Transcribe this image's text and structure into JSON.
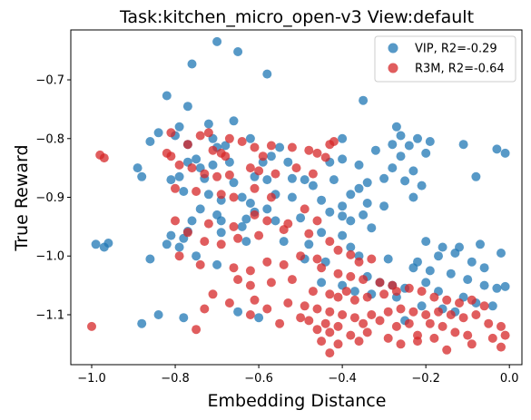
{
  "chart_data": {
    "type": "scatter",
    "title": "Task:kitchen_micro_open-v3 View:default",
    "xlabel": "Embedding Distance",
    "ylabel": "True Reward",
    "xlim": [
      -1.05,
      0.03
    ],
    "ylim": [
      -1.185,
      -0.615
    ],
    "xticks": [
      -1.0,
      -0.8,
      -0.6,
      -0.4,
      -0.2,
      0.0
    ],
    "xtick_labels": [
      "−1.0",
      "−0.8",
      "−0.6",
      "−0.4",
      "−0.2",
      "0.0"
    ],
    "yticks": [
      -1.1,
      -1.0,
      -0.9,
      -0.8,
      -0.7
    ],
    "ytick_labels": [
      "−1.1",
      "−1.0",
      "−0.9",
      "−0.8",
      "−0.7"
    ],
    "grid": false,
    "legend_position": "top-right",
    "series": [
      {
        "name": "VIP, R2=-0.29",
        "color": "#1f77b4",
        "points": [
          [
            -0.7,
            -0.635
          ],
          [
            -0.65,
            -0.652
          ],
          [
            -0.76,
            -0.673
          ],
          [
            -0.58,
            -0.69
          ],
          [
            -0.82,
            -0.727
          ],
          [
            -0.77,
            -0.745
          ],
          [
            -0.35,
            -0.735
          ],
          [
            -0.79,
            -0.78
          ],
          [
            -0.72,
            -0.775
          ],
          [
            -0.66,
            -0.77
          ],
          [
            -0.84,
            -0.79
          ],
          [
            -0.8,
            -0.795
          ],
          [
            -0.71,
            -0.8
          ],
          [
            -0.62,
            -0.8
          ],
          [
            -0.27,
            -0.78
          ],
          [
            -0.26,
            -0.795
          ],
          [
            -0.22,
            -0.8
          ],
          [
            -0.19,
            -0.805
          ],
          [
            -0.11,
            -0.81
          ],
          [
            -0.03,
            -0.818
          ],
          [
            -0.01,
            -0.825
          ],
          [
            -0.86,
            -0.805
          ],
          [
            -0.77,
            -0.81
          ],
          [
            -0.7,
            -0.815
          ],
          [
            -0.68,
            -0.812
          ],
          [
            -0.55,
            -0.815
          ],
          [
            -0.4,
            -0.8
          ],
          [
            -0.32,
            -0.82
          ],
          [
            -0.28,
            -0.81
          ],
          [
            -0.24,
            -0.812
          ],
          [
            -0.2,
            -0.825
          ],
          [
            -0.89,
            -0.85
          ],
          [
            -0.88,
            -0.865
          ],
          [
            -0.77,
            -0.84
          ],
          [
            -0.75,
            -0.835
          ],
          [
            -0.74,
            -0.85
          ],
          [
            -0.71,
            -0.845
          ],
          [
            -0.67,
            -0.84
          ],
          [
            -0.59,
            -0.84
          ],
          [
            -0.57,
            -0.83
          ],
          [
            -0.53,
            -0.84
          ],
          [
            -0.43,
            -0.84
          ],
          [
            -0.4,
            -0.835
          ],
          [
            -0.36,
            -0.845
          ],
          [
            -0.28,
            -0.85
          ],
          [
            -0.26,
            -0.83
          ],
          [
            -0.23,
            -0.855
          ],
          [
            -0.81,
            -0.87
          ],
          [
            -0.79,
            -0.865
          ],
          [
            -0.73,
            -0.868
          ],
          [
            -0.66,
            -0.875
          ],
          [
            -0.61,
            -0.865
          ],
          [
            -0.58,
            -0.87
          ],
          [
            -0.52,
            -0.868
          ],
          [
            -0.49,
            -0.87
          ],
          [
            -0.47,
            -0.88
          ],
          [
            -0.42,
            -0.87
          ],
          [
            -0.36,
            -0.885
          ],
          [
            -0.34,
            -0.875
          ],
          [
            -0.3,
            -0.868
          ],
          [
            -0.25,
            -0.872
          ],
          [
            -0.21,
            -0.88
          ],
          [
            -0.08,
            -0.865
          ],
          [
            -0.78,
            -0.89
          ],
          [
            -0.72,
            -0.895
          ],
          [
            -0.69,
            -0.905
          ],
          [
            -0.64,
            -0.9
          ],
          [
            -0.62,
            -0.91
          ],
          [
            -0.56,
            -0.895
          ],
          [
            -0.52,
            -0.9
          ],
          [
            -0.45,
            -0.905
          ],
          [
            -0.4,
            -0.915
          ],
          [
            -0.38,
            -0.895
          ],
          [
            -0.34,
            -0.91
          ],
          [
            -0.3,
            -0.915
          ],
          [
            -0.23,
            -0.9
          ],
          [
            -0.74,
            -0.92
          ],
          [
            -0.7,
            -0.93
          ],
          [
            -0.61,
            -0.925
          ],
          [
            -0.58,
            -0.92
          ],
          [
            -0.43,
            -0.925
          ],
          [
            -0.4,
            -0.932
          ],
          [
            -0.35,
            -0.93
          ],
          [
            -0.76,
            -0.94
          ],
          [
            -0.69,
            -0.94
          ],
          [
            -0.63,
            -0.937
          ],
          [
            -0.56,
            -0.94
          ],
          [
            -0.5,
            -0.935
          ],
          [
            -0.38,
            -0.94
          ],
          [
            -0.33,
            -0.952
          ],
          [
            -0.77,
            -0.958
          ],
          [
            -0.64,
            -0.95
          ],
          [
            -0.69,
            -0.96
          ],
          [
            -0.45,
            -0.96
          ],
          [
            -0.4,
            -0.965
          ],
          [
            -0.81,
            -0.965
          ],
          [
            -0.78,
            -0.97
          ],
          [
            -0.99,
            -0.98
          ],
          [
            -0.97,
            -0.985
          ],
          [
            -0.96,
            -0.978
          ],
          [
            -0.82,
            -0.98
          ],
          [
            -0.79,
            -0.985
          ],
          [
            -0.63,
            -0.975
          ],
          [
            -0.54,
            -0.975
          ],
          [
            -0.48,
            -0.98
          ],
          [
            -0.38,
            -0.985
          ],
          [
            -0.2,
            -0.975
          ],
          [
            -0.16,
            -0.985
          ],
          [
            -0.12,
            -0.985
          ],
          [
            -0.07,
            -0.98
          ],
          [
            -0.02,
            -0.995
          ],
          [
            -0.86,
            -1.005
          ],
          [
            -0.75,
            -1.0
          ],
          [
            -0.7,
            -1.015
          ],
          [
            -0.49,
            -1.005
          ],
          [
            -0.44,
            -1.01
          ],
          [
            -0.36,
            -1.0
          ],
          [
            -0.29,
            -1.005
          ],
          [
            -0.22,
            -1.01
          ],
          [
            -0.17,
            -1.0
          ],
          [
            -0.13,
            -0.995
          ],
          [
            -0.09,
            -1.01
          ],
          [
            -0.06,
            -1.02
          ],
          [
            -0.23,
            -1.02
          ],
          [
            -0.19,
            -1.025
          ],
          [
            -0.14,
            -1.03
          ],
          [
            -0.1,
            -1.04
          ],
          [
            -0.06,
            -1.05
          ],
          [
            -0.03,
            -1.055
          ],
          [
            -0.01,
            -1.052
          ],
          [
            -0.34,
            -1.035
          ],
          [
            -0.31,
            -1.045
          ],
          [
            -0.28,
            -1.05
          ],
          [
            -0.25,
            -1.055
          ],
          [
            -0.2,
            -1.045
          ],
          [
            -0.45,
            -1.045
          ],
          [
            -0.4,
            -1.05
          ],
          [
            -0.37,
            -1.06
          ],
          [
            -0.33,
            -1.065
          ],
          [
            -0.27,
            -1.07
          ],
          [
            -0.17,
            -1.06
          ],
          [
            -0.11,
            -1.07
          ],
          [
            -0.08,
            -1.08
          ],
          [
            -0.04,
            -1.085
          ],
          [
            -0.21,
            -1.085
          ],
          [
            -0.16,
            -1.09
          ],
          [
            -0.13,
            -1.095
          ],
          [
            -0.84,
            -1.1
          ],
          [
            -0.78,
            -1.105
          ],
          [
            -0.88,
            -1.115
          ],
          [
            -0.65,
            -1.095
          ],
          [
            -0.6,
            -1.105
          ],
          [
            -0.25,
            -1.11
          ]
        ]
      },
      {
        "name": "R3M, R2=-0.64",
        "color": "#d62728",
        "points": [
          [
            -0.98,
            -0.828
          ],
          [
            -0.97,
            -0.833
          ],
          [
            -0.81,
            -0.79
          ],
          [
            -0.77,
            -0.81
          ],
          [
            -0.71,
            -0.82
          ],
          [
            -0.69,
            -0.825
          ],
          [
            -0.68,
            -0.83
          ],
          [
            -0.74,
            -0.795
          ],
          [
            -0.72,
            -0.79
          ],
          [
            -0.67,
            -0.8
          ],
          [
            -0.64,
            -0.805
          ],
          [
            -0.61,
            -0.815
          ],
          [
            -0.59,
            -0.83
          ],
          [
            -0.57,
            -0.812
          ],
          [
            -0.52,
            -0.815
          ],
          [
            -0.48,
            -0.82
          ],
          [
            -0.46,
            -0.825
          ],
          [
            -0.44,
            -0.832
          ],
          [
            -0.43,
            -0.81
          ],
          [
            -0.42,
            -0.805
          ],
          [
            -0.82,
            -0.825
          ],
          [
            -0.81,
            -0.83
          ],
          [
            -0.79,
            -0.845
          ],
          [
            -0.76,
            -0.85
          ],
          [
            -0.73,
            -0.86
          ],
          [
            -0.7,
            -0.865
          ],
          [
            -0.67,
            -0.862
          ],
          [
            -0.62,
            -0.85
          ],
          [
            -0.6,
            -0.855
          ],
          [
            -0.56,
            -0.86
          ],
          [
            -0.51,
            -0.85
          ],
          [
            -0.47,
            -0.86
          ],
          [
            -0.8,
            -0.885
          ],
          [
            -0.75,
            -0.89
          ],
          [
            -0.69,
            -0.895
          ],
          [
            -0.66,
            -0.9
          ],
          [
            -0.61,
            -0.885
          ],
          [
            -0.57,
            -0.9
          ],
          [
            -0.8,
            -0.94
          ],
          [
            -0.72,
            -0.945
          ],
          [
            -0.66,
            -0.95
          ],
          [
            -0.61,
            -0.93
          ],
          [
            -0.58,
            -0.94
          ],
          [
            -0.53,
            -0.945
          ],
          [
            -0.49,
            -0.92
          ],
          [
            -0.46,
            -0.94
          ],
          [
            -0.77,
            -0.96
          ],
          [
            -0.73,
            -0.975
          ],
          [
            -0.69,
            -0.98
          ],
          [
            -0.65,
            -0.97
          ],
          [
            -0.6,
            -0.965
          ],
          [
            -0.54,
            -0.955
          ],
          [
            -0.48,
            -0.962
          ],
          [
            -0.43,
            -0.975
          ],
          [
            -0.41,
            -0.99
          ],
          [
            -0.38,
            -0.998
          ],
          [
            -0.36,
            -1.01
          ],
          [
            -0.33,
            -1.005
          ],
          [
            -0.79,
            -1.0
          ],
          [
            -0.74,
            -1.015
          ],
          [
            -0.66,
            -1.02
          ],
          [
            -0.62,
            -1.025
          ],
          [
            -0.58,
            -1.01
          ],
          [
            -0.54,
            -1.015
          ],
          [
            -0.5,
            -1.0
          ],
          [
            -0.46,
            -1.005
          ],
          [
            -0.45,
            -1.02
          ],
          [
            -0.41,
            -1.03
          ],
          [
            -0.38,
            -1.035
          ],
          [
            -0.35,
            -1.04
          ],
          [
            -0.31,
            -1.045
          ],
          [
            -0.28,
            -1.05
          ],
          [
            -0.65,
            -1.04
          ],
          [
            -0.62,
            -1.05
          ],
          [
            -0.57,
            -1.045
          ],
          [
            -0.52,
            -1.04
          ],
          [
            -0.47,
            -1.06
          ],
          [
            -0.43,
            -1.065
          ],
          [
            -0.41,
            -1.07
          ],
          [
            -0.39,
            -1.06
          ],
          [
            -0.37,
            -1.075
          ],
          [
            -0.34,
            -1.07
          ],
          [
            -0.3,
            -1.065
          ],
          [
            -0.27,
            -1.06
          ],
          [
            -0.24,
            -1.055
          ],
          [
            -0.21,
            -1.06
          ],
          [
            -0.18,
            -1.07
          ],
          [
            -0.15,
            -1.075
          ],
          [
            -0.12,
            -1.08
          ],
          [
            -0.09,
            -1.075
          ],
          [
            -0.06,
            -1.085
          ],
          [
            -0.71,
            -1.065
          ],
          [
            -0.67,
            -1.08
          ],
          [
            -0.61,
            -1.075
          ],
          [
            -0.58,
            -1.09
          ],
          [
            -0.53,
            -1.08
          ],
          [
            -0.49,
            -1.085
          ],
          [
            -0.46,
            -1.09
          ],
          [
            -0.43,
            -1.095
          ],
          [
            -0.4,
            -1.1
          ],
          [
            -0.37,
            -1.105
          ],
          [
            -0.33,
            -1.1
          ],
          [
            -0.29,
            -1.095
          ],
          [
            -0.26,
            -1.09
          ],
          [
            -0.23,
            -1.095
          ],
          [
            -0.2,
            -1.1
          ],
          [
            -0.17,
            -1.095
          ],
          [
            -0.14,
            -1.1
          ],
          [
            -0.11,
            -1.105
          ],
          [
            -0.08,
            -1.1
          ],
          [
            -0.05,
            -1.115
          ],
          [
            -0.02,
            -1.12
          ],
          [
            -0.73,
            -1.09
          ],
          [
            -0.62,
            -1.1
          ],
          [
            -0.5,
            -1.105
          ],
          [
            -0.48,
            -1.11
          ],
          [
            -0.44,
            -1.115
          ],
          [
            -0.41,
            -1.12
          ],
          [
            -0.35,
            -1.115
          ],
          [
            -0.31,
            -1.11
          ],
          [
            -0.27,
            -1.12
          ],
          [
            -0.24,
            -1.115
          ],
          [
            -0.19,
            -1.115
          ],
          [
            -0.16,
            -1.12
          ],
          [
            -0.13,
            -1.13
          ],
          [
            -1.0,
            -1.12
          ],
          [
            -0.75,
            -1.125
          ],
          [
            -0.55,
            -1.115
          ],
          [
            -0.46,
            -1.125
          ],
          [
            -0.43,
            -1.13
          ],
          [
            -0.38,
            -1.135
          ],
          [
            -0.34,
            -1.13
          ],
          [
            -0.29,
            -1.14
          ],
          [
            -0.22,
            -1.135
          ],
          [
            -0.18,
            -1.14
          ],
          [
            -0.1,
            -1.135
          ],
          [
            -0.04,
            -1.14
          ],
          [
            -0.01,
            -1.135
          ],
          [
            -0.45,
            -1.145
          ],
          [
            -0.41,
            -1.15
          ],
          [
            -0.36,
            -1.145
          ],
          [
            -0.26,
            -1.15
          ],
          [
            -0.22,
            -1.145
          ],
          [
            -0.15,
            -1.16
          ],
          [
            -0.09,
            -1.15
          ],
          [
            -0.02,
            -1.155
          ],
          [
            -0.43,
            -1.165
          ]
        ]
      }
    ]
  }
}
